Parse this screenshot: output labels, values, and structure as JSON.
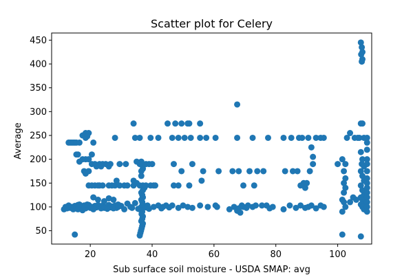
{
  "chart_data": {
    "type": "scatter",
    "title": "Scatter plot for Celery",
    "xlabel": "Sub surface soil moisture - USDA SMAP: avg",
    "ylabel": "Average",
    "xlim": [
      7.5,
      111
    ],
    "ylim": [
      22,
      465
    ],
    "x_ticks": [
      20,
      40,
      60,
      80,
      100
    ],
    "y_ticks": [
      50,
      100,
      150,
      200,
      250,
      300,
      350,
      400,
      450
    ],
    "grid": false,
    "legend": "none",
    "marker_color": "#1f77b4",
    "points": [
      [
        11.5,
        95
      ],
      [
        12,
        100
      ],
      [
        12.5,
        97
      ],
      [
        13,
        103
      ],
      [
        13.5,
        98
      ],
      [
        14,
        100
      ],
      [
        14.5,
        95
      ],
      [
        15,
        102
      ],
      [
        15.5,
        99
      ],
      [
        16,
        104
      ],
      [
        16.5,
        96
      ],
      [
        17,
        100
      ],
      [
        17.5,
        98
      ],
      [
        18,
        103
      ],
      [
        18.5,
        97
      ],
      [
        19,
        100
      ],
      [
        19.5,
        104
      ],
      [
        20,
        98
      ],
      [
        20.5,
        100
      ],
      [
        21,
        95
      ],
      [
        21.5,
        102
      ],
      [
        22,
        99
      ],
      [
        22.5,
        104
      ],
      [
        23,
        100
      ],
      [
        23.5,
        97
      ],
      [
        24,
        103
      ],
      [
        24.5,
        98
      ],
      [
        25,
        100
      ],
      [
        25.5,
        96
      ],
      [
        26,
        104
      ],
      [
        26.5,
        99
      ],
      [
        27,
        101
      ],
      [
        27.5,
        97
      ],
      [
        28,
        103
      ],
      [
        28.5,
        98
      ],
      [
        29,
        100
      ],
      [
        13,
        235
      ],
      [
        13.5,
        235
      ],
      [
        14,
        235
      ],
      [
        14.5,
        235
      ],
      [
        15,
        235
      ],
      [
        15.5,
        235
      ],
      [
        16.5,
        235
      ],
      [
        15.5,
        210
      ],
      [
        16,
        210
      ],
      [
        20.5,
        210
      ],
      [
        16.5,
        195
      ],
      [
        17.5,
        200
      ],
      [
        18.5,
        200
      ],
      [
        19.5,
        200
      ],
      [
        17.5,
        250
      ],
      [
        18.5,
        255
      ],
      [
        19.5,
        255
      ],
      [
        18.5,
        245
      ],
      [
        19,
        248
      ],
      [
        18,
        175
      ],
      [
        18.5,
        170
      ],
      [
        19.5,
        175
      ],
      [
        21,
        235
      ],
      [
        28,
        245
      ],
      [
        20.5,
        190
      ],
      [
        21.5,
        190
      ],
      [
        22,
        185
      ],
      [
        23,
        190
      ],
      [
        23.5,
        185
      ],
      [
        24,
        190
      ],
      [
        25,
        190
      ],
      [
        26,
        185
      ],
      [
        26.5,
        190
      ],
      [
        29.5,
        190
      ],
      [
        31.5,
        190
      ],
      [
        19.5,
        145
      ],
      [
        20.5,
        145
      ],
      [
        21.5,
        145
      ],
      [
        22.5,
        145
      ],
      [
        23,
        145
      ],
      [
        24,
        145
      ],
      [
        26,
        145
      ],
      [
        27,
        145
      ],
      [
        28,
        145
      ],
      [
        29.5,
        145
      ],
      [
        31,
        145
      ],
      [
        32,
        145
      ],
      [
        34,
        145
      ],
      [
        15,
        42
      ],
      [
        16,
        95
      ],
      [
        16.5,
        105
      ],
      [
        17.5,
        93
      ],
      [
        19,
        105
      ],
      [
        21,
        120
      ],
      [
        22.5,
        115
      ],
      [
        24.5,
        112
      ],
      [
        26,
        118
      ],
      [
        27.5,
        115
      ],
      [
        28.5,
        155
      ],
      [
        29,
        105
      ],
      [
        30,
        102
      ],
      [
        31,
        95
      ],
      [
        32,
        107
      ],
      [
        33,
        100
      ],
      [
        33.5,
        98
      ],
      [
        34,
        275
      ],
      [
        34.5,
        245
      ],
      [
        36,
        245
      ],
      [
        39.5,
        245
      ],
      [
        42,
        245
      ],
      [
        35,
        195
      ],
      [
        36,
        190
      ],
      [
        36.5,
        195
      ],
      [
        37,
        185
      ],
      [
        38,
        190
      ],
      [
        39,
        190
      ],
      [
        40,
        190
      ],
      [
        34,
        155
      ],
      [
        35,
        150
      ],
      [
        36,
        145
      ],
      [
        37,
        145
      ],
      [
        37.5,
        140
      ],
      [
        38,
        145
      ],
      [
        39.5,
        145
      ],
      [
        40.5,
        145
      ],
      [
        36,
        40
      ],
      [
        36.2,
        45
      ],
      [
        36.4,
        50
      ],
      [
        36.6,
        55
      ],
      [
        36.8,
        60
      ],
      [
        37,
        65
      ],
      [
        36.5,
        70
      ],
      [
        36.8,
        75
      ],
      [
        37,
        80
      ],
      [
        36.6,
        85
      ],
      [
        36.8,
        90
      ],
      [
        36,
        95
      ],
      [
        36.5,
        100
      ],
      [
        37,
        105
      ],
      [
        36.8,
        110
      ],
      [
        36.5,
        115
      ],
      [
        37,
        120
      ],
      [
        36.8,
        125
      ],
      [
        36.5,
        130
      ],
      [
        37,
        135
      ],
      [
        36.5,
        175
      ],
      [
        37,
        180
      ],
      [
        36.5,
        165
      ],
      [
        34.5,
        108
      ],
      [
        35.5,
        96
      ],
      [
        38,
        99
      ],
      [
        38.5,
        103
      ],
      [
        39,
        96
      ],
      [
        40.5,
        100
      ],
      [
        42,
        103
      ],
      [
        43,
        97
      ],
      [
        44.5,
        103
      ],
      [
        45.5,
        99
      ],
      [
        41,
        145
      ],
      [
        43.5,
        100
      ],
      [
        46.5,
        245
      ],
      [
        48.5,
        245
      ],
      [
        50.5,
        245
      ],
      [
        52.5,
        245
      ],
      [
        55.5,
        245
      ],
      [
        57.5,
        245
      ],
      [
        60.5,
        245
      ],
      [
        45,
        275
      ],
      [
        47.5,
        275
      ],
      [
        49.5,
        275
      ],
      [
        51.5,
        275
      ],
      [
        52,
        275
      ],
      [
        55.5,
        275
      ],
      [
        47,
        190
      ],
      [
        49.5,
        175
      ],
      [
        53,
        190
      ],
      [
        56.5,
        175
      ],
      [
        61.5,
        175
      ],
      [
        47,
        145
      ],
      [
        48.5,
        145
      ],
      [
        52,
        145
      ],
      [
        56,
        155
      ],
      [
        46.5,
        103
      ],
      [
        48.5,
        98
      ],
      [
        50,
        103
      ],
      [
        51.5,
        100
      ],
      [
        53,
        98
      ],
      [
        55.5,
        103
      ],
      [
        58,
        100
      ],
      [
        60.5,
        103
      ],
      [
        61,
        100
      ],
      [
        65,
        95
      ],
      [
        66.5,
        100
      ],
      [
        67.5,
        92
      ],
      [
        68,
        97
      ],
      [
        68.5,
        88
      ],
      [
        69,
        103
      ],
      [
        69.5,
        100
      ],
      [
        70.5,
        98
      ],
      [
        71,
        103
      ],
      [
        72.5,
        100
      ],
      [
        73.5,
        103
      ],
      [
        75.5,
        103
      ],
      [
        77,
        103
      ],
      [
        78,
        97
      ],
      [
        79,
        100
      ],
      [
        67.5,
        315
      ],
      [
        67.5,
        245
      ],
      [
        72.5,
        245
      ],
      [
        77.5,
        245
      ],
      [
        82.5,
        245
      ],
      [
        85,
        245
      ],
      [
        87.5,
        245
      ],
      [
        88.5,
        245
      ],
      [
        90.5,
        245
      ],
      [
        66,
        175
      ],
      [
        68,
        175
      ],
      [
        71.5,
        175
      ],
      [
        74,
        175
      ],
      [
        76,
        175
      ],
      [
        69.5,
        145
      ],
      [
        73,
        145
      ],
      [
        82.5,
        95
      ],
      [
        84.5,
        103
      ],
      [
        86.5,
        98
      ],
      [
        88,
        103
      ],
      [
        89.5,
        98
      ],
      [
        90.5,
        100
      ],
      [
        91.5,
        103
      ],
      [
        93,
        97
      ],
      [
        94.5,
        103
      ],
      [
        95.5,
        100
      ],
      [
        83,
        175
      ],
      [
        85.5,
        175
      ],
      [
        87,
        175
      ],
      [
        89,
        150
      ],
      [
        90,
        150
      ],
      [
        91,
        175
      ],
      [
        88,
        145
      ],
      [
        89.5,
        140
      ],
      [
        91.5,
        225
      ],
      [
        92,
        205
      ],
      [
        92,
        190
      ],
      [
        93,
        245
      ],
      [
        94.5,
        245
      ],
      [
        95.5,
        245
      ],
      [
        103,
        245
      ],
      [
        104,
        255
      ],
      [
        105.5,
        245
      ],
      [
        106.5,
        245
      ],
      [
        107,
        245
      ],
      [
        108.5,
        245
      ],
      [
        109.5,
        245
      ],
      [
        100,
        190
      ],
      [
        101.5,
        200
      ],
      [
        102.5,
        190
      ],
      [
        102,
        175
      ],
      [
        102.5,
        160
      ],
      [
        102,
        150
      ],
      [
        102.5,
        140
      ],
      [
        102,
        130
      ],
      [
        101.5,
        115
      ],
      [
        102,
        110
      ],
      [
        102.5,
        100
      ],
      [
        101.5,
        90
      ],
      [
        101.5,
        42
      ],
      [
        104,
        110
      ],
      [
        105,
        120
      ],
      [
        106,
        115
      ],
      [
        107.5,
        445
      ],
      [
        107.8,
        435
      ],
      [
        108,
        425
      ],
      [
        107.6,
        420
      ],
      [
        108,
        410
      ],
      [
        107.8,
        405
      ],
      [
        107.5,
        275
      ],
      [
        108,
        275
      ],
      [
        107.5,
        215
      ],
      [
        108,
        200
      ],
      [
        107.8,
        190
      ],
      [
        108.5,
        185
      ],
      [
        107.5,
        175
      ],
      [
        108,
        165
      ],
      [
        108.5,
        155
      ],
      [
        107.5,
        145
      ],
      [
        108,
        135
      ],
      [
        108.5,
        125
      ],
      [
        107.5,
        120
      ],
      [
        108,
        115
      ],
      [
        108.5,
        110
      ],
      [
        107.5,
        105
      ],
      [
        108,
        100
      ],
      [
        108.5,
        95
      ],
      [
        107.5,
        38
      ],
      [
        109.5,
        235
      ],
      [
        109.5,
        220
      ],
      [
        109.5,
        200
      ],
      [
        109.5,
        190
      ],
      [
        109.5,
        175
      ],
      [
        109.5,
        160
      ],
      [
        109.5,
        150
      ],
      [
        109.5,
        140
      ],
      [
        109.5,
        130
      ],
      [
        109.5,
        120
      ],
      [
        109.5,
        110
      ],
      [
        109.5,
        100
      ],
      [
        109.5,
        90
      ]
    ]
  }
}
